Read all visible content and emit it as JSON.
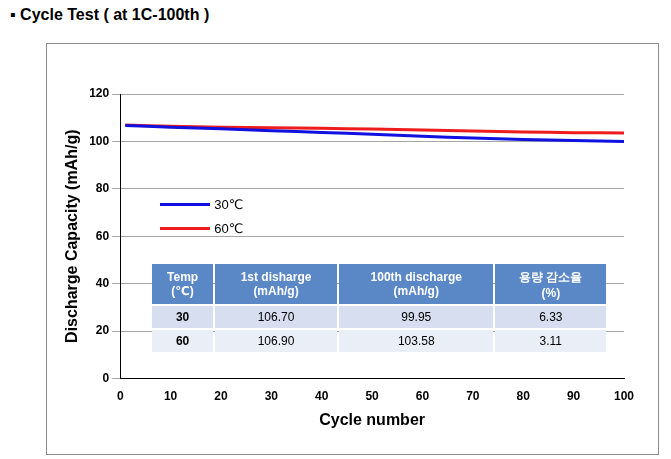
{
  "title": "▪ Cycle Test ( at 1C-100th )",
  "chart_data": {
    "type": "line",
    "x_label": "Cycle number",
    "y_label": "Discharge Capacity (mAh/g)",
    "x": [
      1,
      10,
      20,
      30,
      40,
      50,
      60,
      70,
      80,
      90,
      100
    ],
    "series": [
      {
        "name": "30℃",
        "color": "#1010e0",
        "values": [
          106.7,
          106.0,
          105.3,
          104.5,
          103.8,
          103.0,
          102.2,
          101.4,
          100.8,
          100.4,
          99.95
        ]
      },
      {
        "name": "60℃",
        "color": "#ee1c1c",
        "values": [
          106.9,
          106.4,
          106.0,
          105.8,
          105.5,
          105.2,
          104.8,
          104.4,
          104.0,
          103.7,
          103.58
        ]
      }
    ],
    "xlim": [
      0,
      100
    ],
    "xticks": [
      0,
      10,
      20,
      30,
      40,
      50,
      60,
      70,
      80,
      90,
      100
    ],
    "ylim": [
      0,
      120
    ],
    "yticks": [
      0,
      20,
      40,
      60,
      80,
      100,
      120
    ],
    "grid": true,
    "legend": "upper left"
  },
  "table": {
    "header": [
      "Temp\n(℃)",
      "1st disharge\n(mAh/g)",
      "100th discharge\n(mAh/g)",
      "용량 감소율\n(%)"
    ],
    "rows": [
      [
        "30",
        "106.70",
        "99.95",
        "6.33"
      ],
      [
        "60",
        "106.90",
        "103.58",
        "3.11"
      ]
    ]
  }
}
